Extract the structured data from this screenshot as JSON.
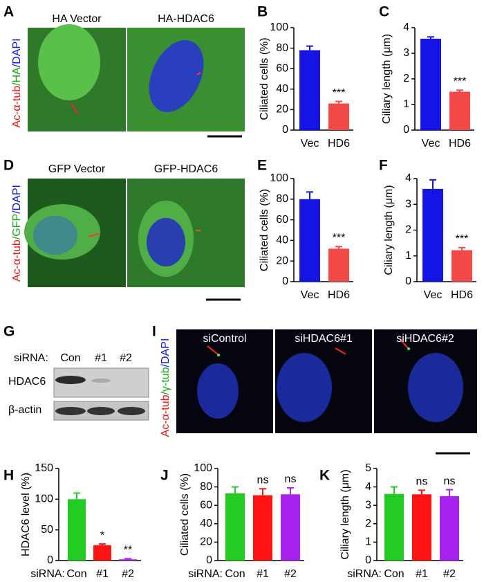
{
  "figures": [
    {
      "panel": "A",
      "captions": [
        "HA Vector",
        "HA-HDAC6"
      ],
      "stain": [
        "Ac-α-tub",
        "/HA",
        "/DAPI"
      ]
    },
    {
      "panel": "D",
      "captions": [
        "GFP Vector",
        "GFP-HDAC6"
      ],
      "stain": [
        "Ac-α-tub",
        "/GFP",
        "/DAPI"
      ]
    },
    {
      "panel": "I",
      "captions": [
        "siControl",
        "siHDAC6#1",
        "siHDAC6#2"
      ],
      "stain": [
        "Ac-α-tub",
        "/γ-tub",
        "/DAPI"
      ]
    }
  ],
  "blot": {
    "panel": "G",
    "prefix": "siRNA:",
    "lanes": [
      "Con",
      "#1",
      "#2"
    ],
    "rows": [
      "HDAC6",
      "β-actin"
    ]
  },
  "chart_data": [
    {
      "type": "bar",
      "panel": "B",
      "y_label": "Ciliated cells (%)",
      "categories": [
        "Vec",
        "HD6"
      ],
      "values": [
        78,
        26
      ],
      "errors": [
        4,
        2
      ],
      "annotations": [
        null,
        "***"
      ],
      "colors": [
        "#1414e6",
        "#f24848"
      ],
      "ylim": [
        0,
        100
      ],
      "yticks": [
        0,
        20,
        40,
        60,
        80,
        100
      ]
    },
    {
      "type": "bar",
      "panel": "C",
      "y_label": "Ciliary length (μm)",
      "categories": [
        "Vec",
        "HD6"
      ],
      "values": [
        3.57,
        1.5
      ],
      "errors": [
        0.07,
        0.06
      ],
      "annotations": [
        null,
        "***"
      ],
      "colors": [
        "#1414e6",
        "#f24848"
      ],
      "ylim": [
        0,
        4
      ],
      "yticks": [
        0,
        1,
        2,
        3,
        4
      ]
    },
    {
      "type": "bar",
      "panel": "E",
      "y_label": "Ciliated cells (%)",
      "categories": [
        "Vec",
        "HD6"
      ],
      "values": [
        80,
        32
      ],
      "errors": [
        7,
        2
      ],
      "annotations": [
        null,
        "***"
      ],
      "colors": [
        "#1414e6",
        "#f24848"
      ],
      "ylim": [
        0,
        100
      ],
      "yticks": [
        0,
        20,
        40,
        60,
        80,
        100
      ]
    },
    {
      "type": "bar",
      "panel": "F",
      "y_label": "Ciliary length (μm)",
      "categories": [
        "Vec",
        "HD6"
      ],
      "values": [
        3.6,
        1.22
      ],
      "errors": [
        0.35,
        0.1
      ],
      "annotations": [
        null,
        "***"
      ],
      "colors": [
        "#1414e6",
        "#f24848"
      ],
      "ylim": [
        0,
        4
      ],
      "yticks": [
        0,
        1,
        2,
        3,
        4
      ]
    },
    {
      "type": "bar",
      "panel": "H",
      "y_label": "HDAC6 level (%)",
      "x_prefix": "siRNA:",
      "categories": [
        "Con",
        "#1",
        "#2"
      ],
      "values": [
        100,
        25,
        2
      ],
      "errors": [
        10,
        2,
        1
      ],
      "annotations": [
        null,
        "*",
        "**"
      ],
      "colors": [
        "#22cc22",
        "#ff1414",
        "#aa22ee"
      ],
      "ylim": [
        0,
        150
      ],
      "yticks": [
        0,
        50,
        100,
        150
      ]
    },
    {
      "type": "bar",
      "panel": "J",
      "y_label": "Ciliated cells (%)",
      "x_prefix": "siRNA:",
      "categories": [
        "Con",
        "#1",
        "#2"
      ],
      "values": [
        73,
        71,
        72
      ],
      "errors": [
        7,
        7,
        7
      ],
      "annotations": [
        null,
        "ns",
        "ns"
      ],
      "colors": [
        "#22cc22",
        "#ff1414",
        "#aa22ee"
      ],
      "ylim": [
        0,
        100
      ],
      "yticks": [
        0,
        20,
        40,
        60,
        80,
        100
      ]
    },
    {
      "type": "bar",
      "panel": "K",
      "y_label": "Ciliary length (μm)",
      "x_prefix": "siRNA:",
      "categories": [
        "Con",
        "#1",
        "#2"
      ],
      "values": [
        3.62,
        3.6,
        3.5
      ],
      "errors": [
        0.38,
        0.22,
        0.35
      ],
      "annotations": [
        null,
        "ns",
        "ns"
      ],
      "colors": [
        "#22cc22",
        "#ff1414",
        "#aa22ee"
      ],
      "ylim": [
        0,
        5
      ],
      "yticks": [
        0,
        1,
        2,
        3,
        4,
        5
      ]
    }
  ]
}
